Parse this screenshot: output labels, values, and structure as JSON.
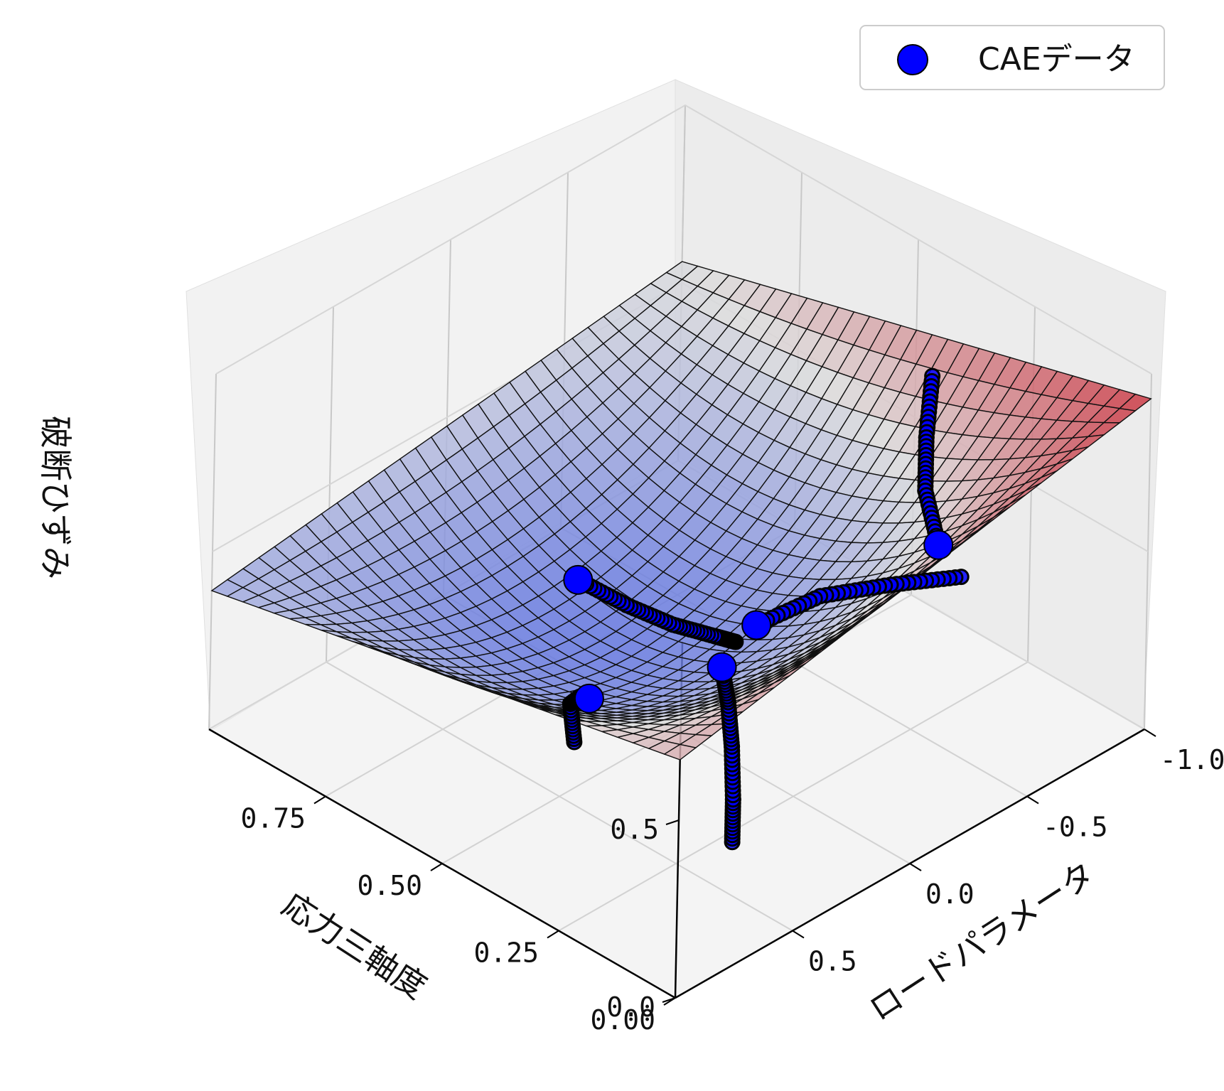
{
  "chart_data": {
    "type": "surface3d",
    "axes": {
      "x": {
        "label": "応力三軸度",
        "ticks": [
          "0.00",
          "0.25",
          "0.50",
          "0.75"
        ],
        "range": [
          0,
          1
        ]
      },
      "y": {
        "label": "ロードパラメータ",
        "ticks": [
          "-1.0",
          "-0.5",
          "0.0",
          "0.5"
        ],
        "range": [
          -1,
          1
        ]
      },
      "z": {
        "label": "破断ひずみ",
        "ticks": [
          "0.0",
          "0.5"
        ],
        "range": [
          0,
          1
        ]
      }
    },
    "legend": {
      "position": "top-right",
      "entries": [
        {
          "label": "CAEデータ",
          "color": "#0000ff"
        }
      ]
    },
    "surface": {
      "colormap": "coolwarm",
      "samples": [
        {
          "triaxiality": 0.0,
          "lode": -1.0,
          "strain": 0.93
        },
        {
          "triaxiality": 0.0,
          "lode": 1.0,
          "strain": 0.67
        },
        {
          "triaxiality": 1.0,
          "lode": -1.0,
          "strain": 0.56
        },
        {
          "triaxiality": 1.0,
          "lode": 1.0,
          "strain": 0.39
        },
        {
          "triaxiality": 0.55,
          "lode": 0.1,
          "strain": 0.22
        }
      ]
    },
    "series": [
      {
        "name": "CAEデータ",
        "type": "scatter",
        "color": "#0000ff",
        "paths": [
          {
            "points": [
              [
                0.44,
                -0.95,
                0.68
              ],
              [
                0.45,
                -0.95,
                0.5
              ],
              [
                0.45,
                -0.95,
                0.35
              ],
              [
                0.42,
                -0.95,
                0.22
              ]
            ]
          },
          {
            "points": [
              [
                0.6,
                -0.45,
                0.0
              ],
              [
                0.62,
                -0.4,
                0.02
              ],
              [
                0.66,
                -0.3,
                0.06
              ],
              [
                0.7,
                -0.18,
                0.13
              ],
              [
                0.74,
                -0.05,
                0.22
              ]
            ]
          },
          {
            "points": [
              [
                0.23,
                0.3,
                0.0
              ],
              [
                0.23,
                0.3,
                0.12
              ],
              [
                0.225,
                0.32,
                0.28
              ],
              [
                0.22,
                0.35,
                0.42
              ],
              [
                0.22,
                0.38,
                0.53
              ]
            ]
          },
          {
            "points": [
              [
                0.52,
                0.4,
                0.1
              ],
              [
                0.53,
                0.4,
                0.2
              ],
              [
                0.52,
                0.38,
                0.22
              ],
              [
                0.5,
                0.38,
                0.23
              ]
            ]
          },
          {
            "points": [
              [
                0.1,
                -0.4,
                0.58
              ],
              [
                0.2,
                -0.3,
                0.52
              ],
              [
                0.3,
                -0.2,
                0.45
              ],
              [
                0.36,
                -0.05,
                0.38
              ]
            ]
          }
        ]
      }
    ]
  }
}
